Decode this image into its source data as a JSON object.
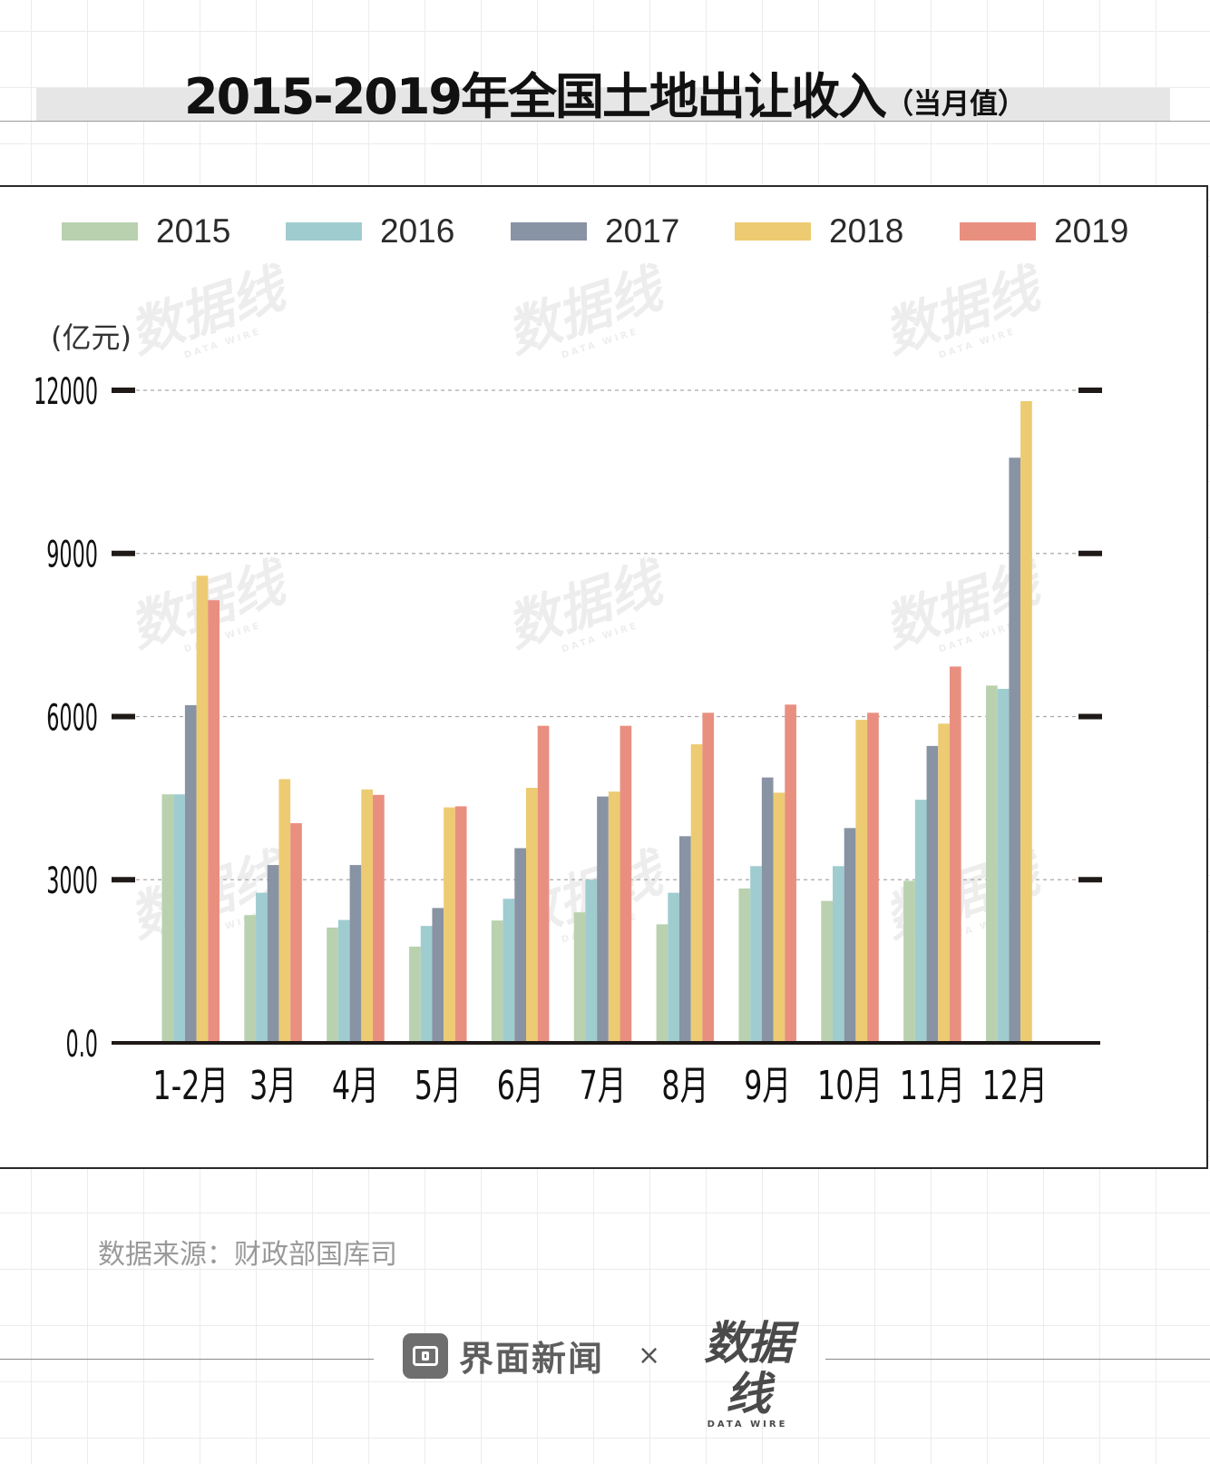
{
  "header": {
    "title": "2015-2019年全国土地出让收入",
    "subtitle": "（当月值）"
  },
  "watermark": {
    "text": "数据线",
    "subtext": "DATA WIRE"
  },
  "colors": {
    "2015": "#b9d1af",
    "2016": "#9fcccf",
    "2017": "#8893a4",
    "2018": "#edcb72",
    "2019": "#e98f80"
  },
  "chart_data": {
    "type": "bar",
    "title": "2015-2019年全国土地出让收入（当月值）",
    "ylabel": "(亿元)",
    "xlabel": "",
    "ylim": [
      0,
      12000
    ],
    "yticks": [
      0,
      3000,
      6000,
      9000,
      12000
    ],
    "ytick_labels": [
      "0.0",
      "3000",
      "6000",
      "9000",
      "12000"
    ],
    "grid": "horizontal dashed",
    "legend_position": "top",
    "categories": [
      "1-2月",
      "3月",
      "4月",
      "5月",
      "6月",
      "7月",
      "8月",
      "9月",
      "10月",
      "11月",
      "12月"
    ],
    "series": [
      {
        "name": "2015",
        "values": [
          4570,
          2350,
          2120,
          1770,
          2250,
          2400,
          2180,
          2840,
          2610,
          2980,
          6570
        ]
      },
      {
        "name": "2016",
        "values": [
          4570,
          2760,
          2260,
          2150,
          2650,
          3000,
          2760,
          3250,
          3250,
          4470,
          6510
        ]
      },
      {
        "name": "2017",
        "values": [
          6210,
          3270,
          3270,
          2480,
          3580,
          4530,
          3800,
          4880,
          3950,
          5460,
          10760
        ]
      },
      {
        "name": "2018",
        "values": [
          8590,
          4850,
          4660,
          4330,
          4690,
          4620,
          5490,
          4600,
          5940,
          5870,
          11800
        ]
      },
      {
        "name": "2019",
        "values": [
          8140,
          4040,
          4560,
          4350,
          5830,
          5830,
          6070,
          6220,
          6070,
          6920,
          null
        ]
      }
    ]
  },
  "footer": {
    "source": "数据来源：财政部国库司",
    "brand": "界面新闻",
    "times": "×",
    "brand2": "数据线",
    "brand2_sub": "DATA WIRE"
  }
}
